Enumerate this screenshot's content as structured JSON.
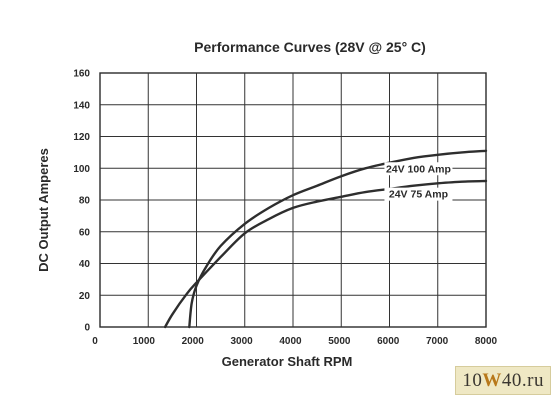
{
  "chart_data": {
    "type": "line",
    "title": "Performance Curves (28V @ 25° C)",
    "xlabel": "Generator Shaft RPM",
    "ylabel": "DC Output Amperes",
    "xlim": [
      0,
      8000
    ],
    "ylim": [
      0,
      160
    ],
    "xticks": [
      0,
      1000,
      2000,
      3000,
      4000,
      5000,
      6000,
      7000,
      8000
    ],
    "yticks": [
      0,
      20,
      40,
      60,
      80,
      100,
      120,
      140,
      160
    ],
    "xtick_labels": [
      "0",
      "1000",
      "2000",
      "3000",
      "4000",
      "5000",
      "6000",
      "7000",
      "8000"
    ],
    "ytick_labels": [
      "0",
      "20",
      "40",
      "60",
      "80",
      "100",
      "120",
      "140",
      "160"
    ],
    "grid": true,
    "series": [
      {
        "name": "24V 100 Amp",
        "x": [
          1850,
          1900,
          2000,
          2200,
          2500,
          3000,
          3500,
          4000,
          4500,
          5000,
          5500,
          6000,
          6500,
          7000,
          7500,
          8000
        ],
        "y": [
          0,
          15,
          26,
          38,
          51,
          65,
          75,
          83,
          89,
          95,
          100,
          103.5,
          106.5,
          108.5,
          110,
          111
        ]
      },
      {
        "name": "24V 75 Amp",
        "x": [
          1350,
          1500,
          1800,
          2000,
          2500,
          3000,
          3500,
          4000,
          4500,
          5000,
          5500,
          6000,
          6500,
          7000,
          7500,
          8000
        ],
        "y": [
          0,
          8,
          21,
          28,
          44,
          59,
          68,
          75,
          79,
          82,
          85,
          87,
          89,
          90.5,
          91.5,
          92
        ]
      }
    ]
  },
  "watermark": {
    "text_before": "10",
    "text_highlight": "W",
    "text_after": "40.ru"
  }
}
